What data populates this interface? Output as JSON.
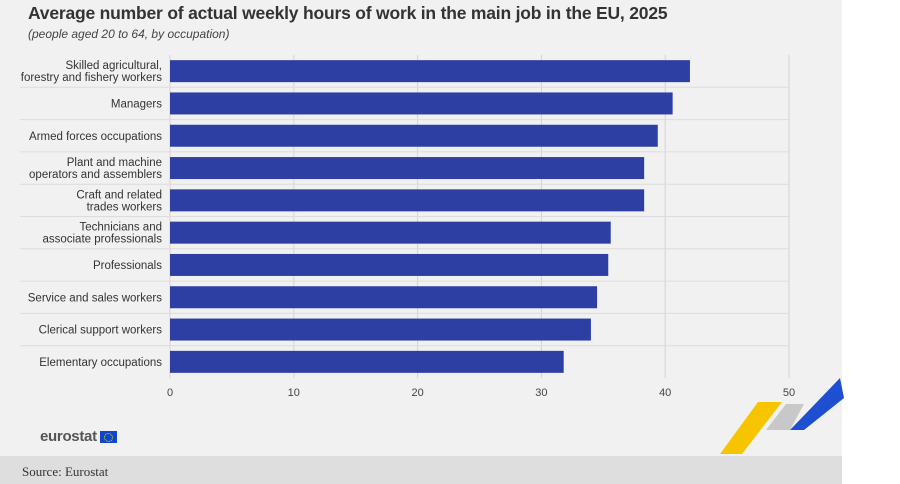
{
  "header": {
    "title": "Average number of actual weekly hours of work in the main job in the EU, 2025",
    "subtitle": "(people aged 20 to 64, by occupation)"
  },
  "branding": {
    "logo_text": "eurostat",
    "source": "Source: Eurostat"
  },
  "colors": {
    "bar": "#2e3fa3",
    "panel": "#f1f1f1",
    "grid": "#d4d4d4",
    "swoosh_yellow": "#f6c500",
    "swoosh_blue": "#1f4fd1"
  },
  "chart_data": {
    "type": "bar",
    "orientation": "horizontal",
    "categories": [
      [
        "Skilled agricultural,",
        "forestry and fishery workers"
      ],
      [
        "Managers"
      ],
      [
        "Armed forces occupations"
      ],
      [
        "Plant and machine",
        "operators and assemblers"
      ],
      [
        "Craft and related",
        "trades workers"
      ],
      [
        "Technicians and",
        "associate professionals"
      ],
      [
        "Professionals"
      ],
      [
        "Service and sales workers"
      ],
      [
        "Clerical support workers"
      ],
      [
        "Elementary occupations"
      ]
    ],
    "values": [
      42.0,
      40.6,
      39.4,
      38.3,
      38.3,
      35.6,
      35.4,
      34.5,
      34.0,
      31.8
    ],
    "xlim": [
      0,
      50
    ],
    "xticks": [
      "0",
      "10",
      "20",
      "30",
      "40",
      "50"
    ],
    "grid": true
  }
}
